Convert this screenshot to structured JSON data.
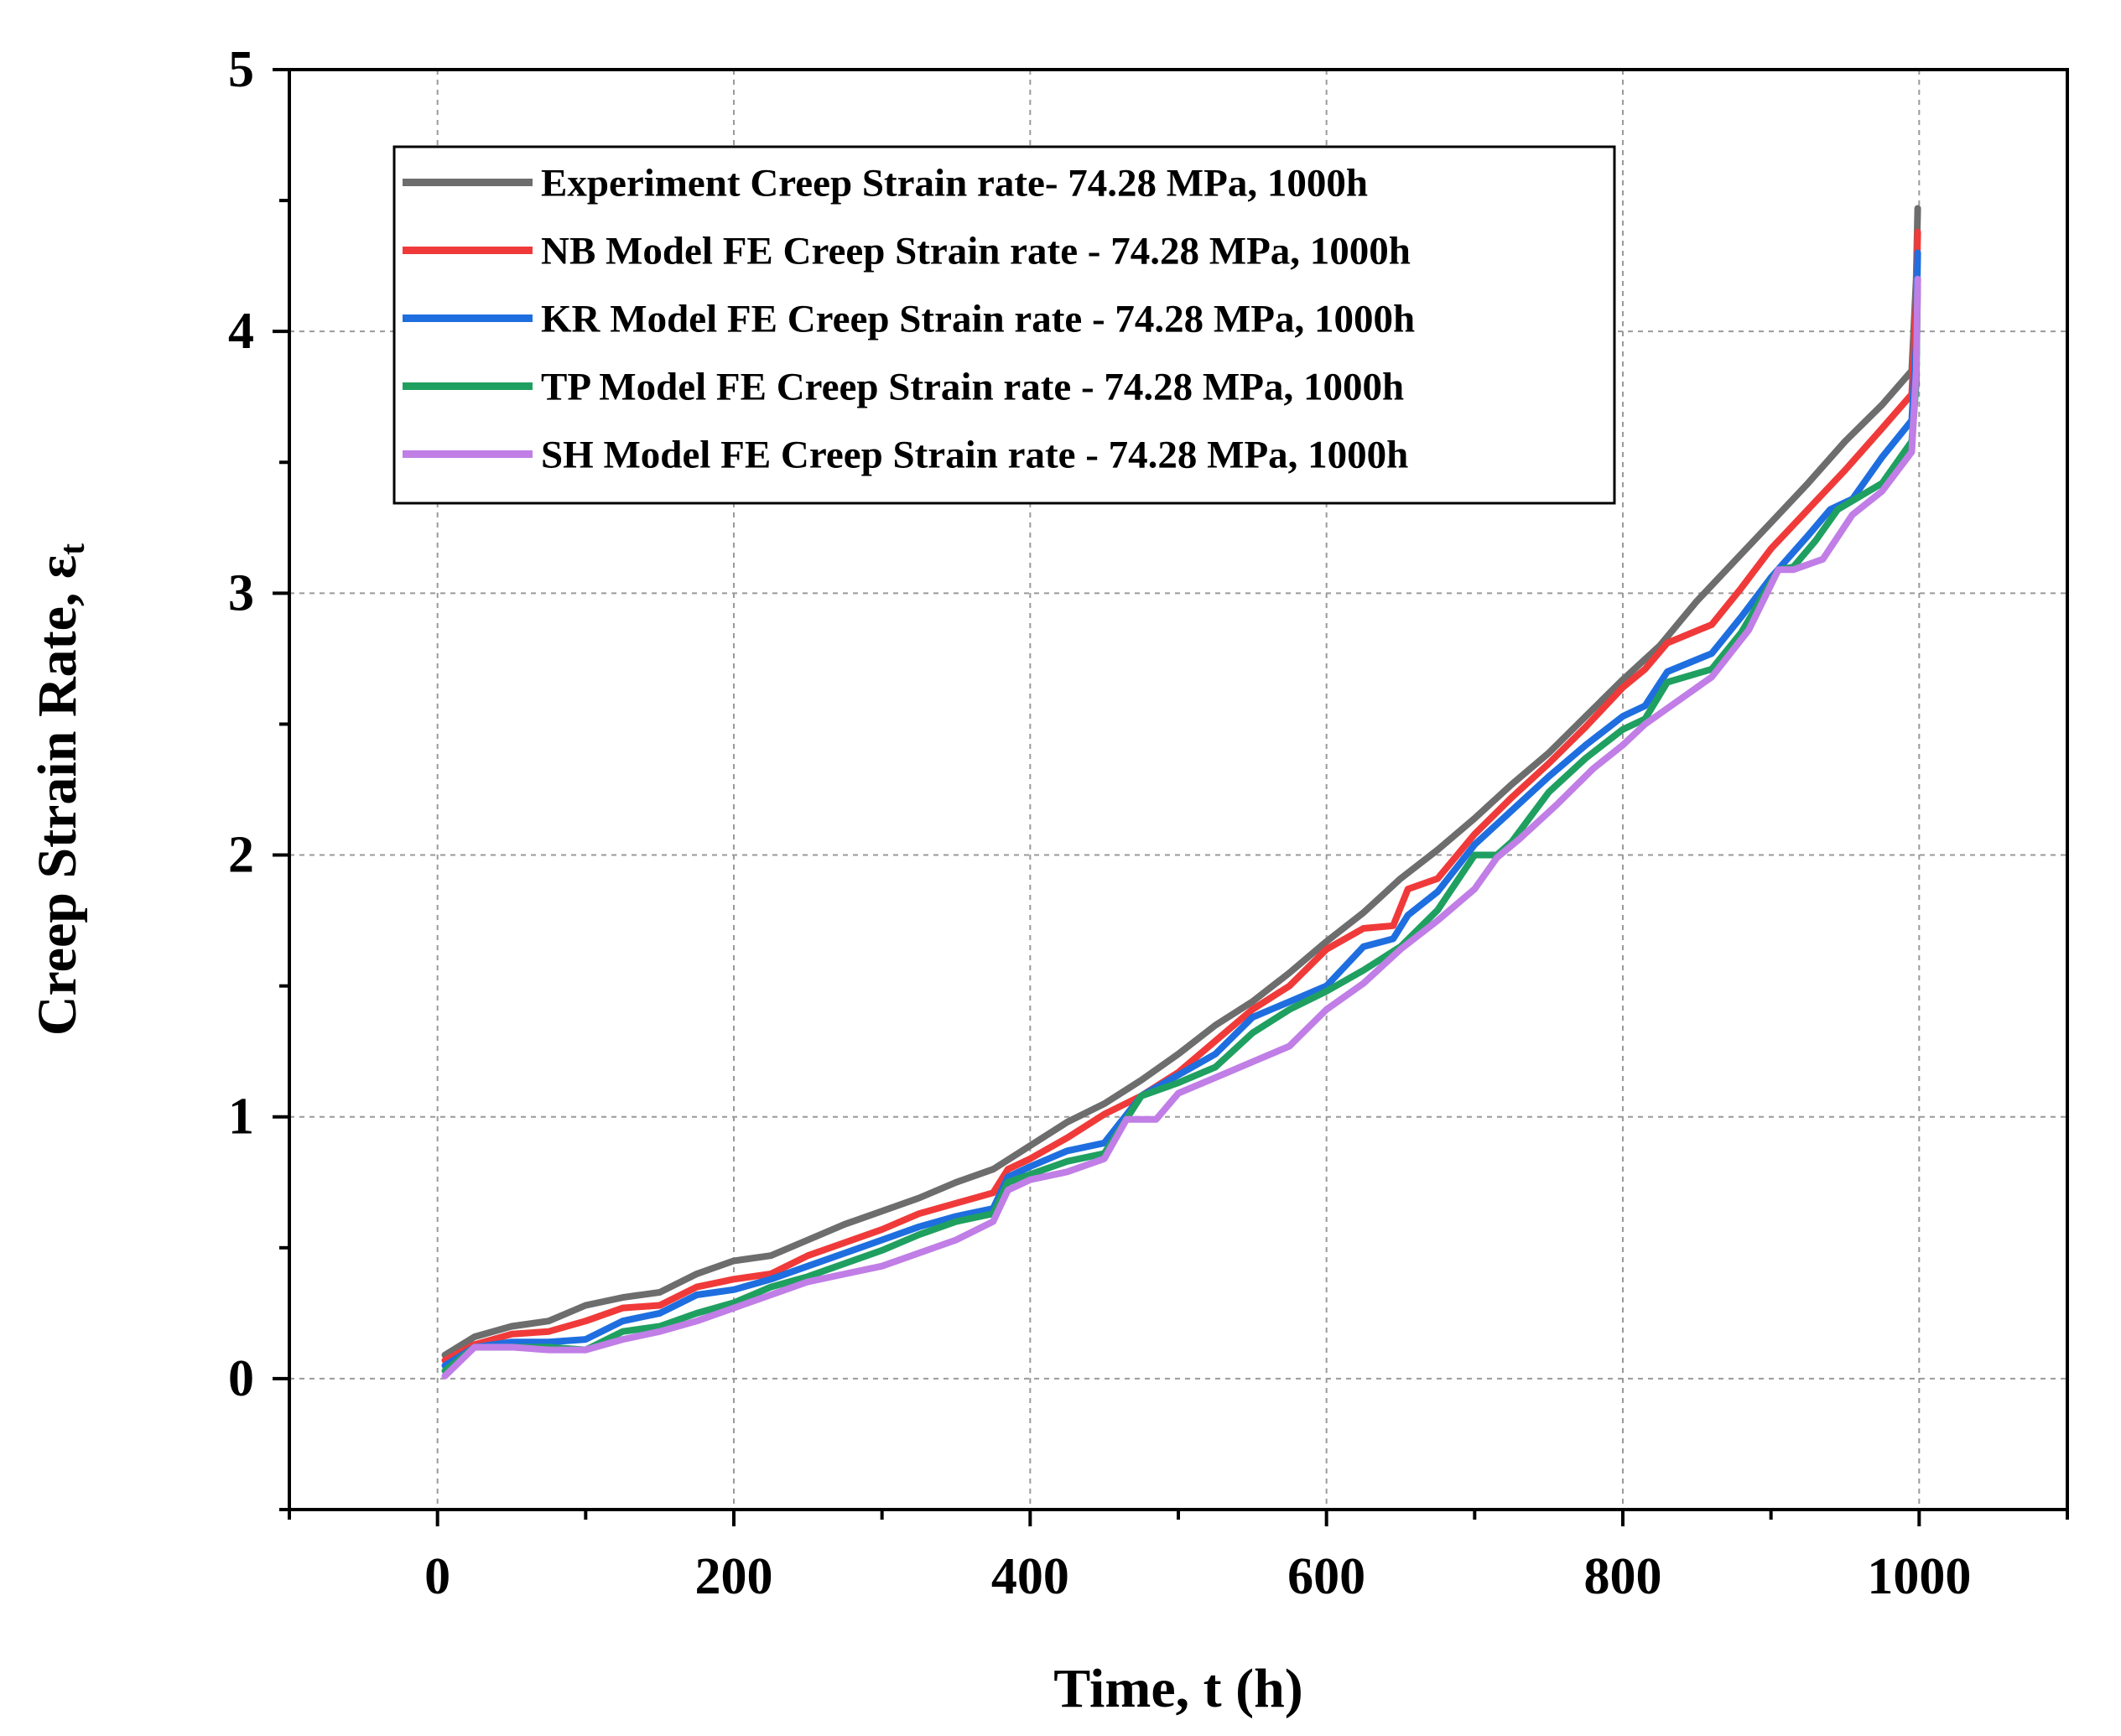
{
  "chart_data": {
    "type": "line",
    "title": "",
    "xlabel": "Time, t (h)",
    "ylabel": "Creep Strain Rate, ε",
    "ylabel_subscript": "t",
    "xlim": [
      -100,
      1100
    ],
    "ylim": [
      -0.5,
      5
    ],
    "xticks": [
      0,
      200,
      400,
      600,
      800,
      1000
    ],
    "yticks": [
      0,
      1,
      2,
      3,
      4,
      5
    ],
    "grid": true,
    "legend_position": "top-left",
    "series": [
      {
        "name": "Experiment Creep Strain rate- 74.28 MPa, 1000h",
        "color": "#6d6d6d",
        "x": [
          5,
          25,
          50,
          75,
          100,
          125,
          150,
          175,
          200,
          225,
          250,
          275,
          300,
          325,
          350,
          375,
          400,
          425,
          450,
          475,
          500,
          525,
          550,
          575,
          600,
          625,
          650,
          675,
          700,
          725,
          750,
          775,
          800,
          825,
          850,
          875,
          900,
          925,
          950,
          975,
          995,
          998,
          999
        ],
        "y": [
          0.09,
          0.16,
          0.2,
          0.22,
          0.28,
          0.31,
          0.33,
          0.4,
          0.45,
          0.47,
          0.53,
          0.59,
          0.64,
          0.69,
          0.75,
          0.8,
          0.89,
          0.98,
          1.05,
          1.14,
          1.24,
          1.35,
          1.44,
          1.55,
          1.67,
          1.78,
          1.91,
          2.02,
          2.14,
          2.27,
          2.39,
          2.53,
          2.67,
          2.8,
          2.97,
          3.12,
          3.27,
          3.42,
          3.58,
          3.72,
          3.85,
          4.2,
          4.47
        ]
      },
      {
        "name": "NB Model FE Creep Strain rate - 74.28 MPa, 1000h",
        "color": "#f03a3a",
        "x": [
          5,
          25,
          50,
          75,
          100,
          125,
          150,
          175,
          200,
          225,
          250,
          275,
          300,
          325,
          350,
          375,
          385,
          400,
          425,
          450,
          475,
          500,
          525,
          550,
          575,
          600,
          625,
          645,
          655,
          675,
          700,
          725,
          750,
          775,
          800,
          815,
          830,
          860,
          880,
          900,
          925,
          950,
          975,
          995,
          998,
          999
        ],
        "y": [
          0.07,
          0.13,
          0.17,
          0.18,
          0.22,
          0.27,
          0.28,
          0.35,
          0.38,
          0.4,
          0.47,
          0.52,
          0.57,
          0.63,
          0.67,
          0.71,
          0.8,
          0.84,
          0.92,
          1.01,
          1.08,
          1.17,
          1.29,
          1.41,
          1.5,
          1.64,
          1.72,
          1.73,
          1.87,
          1.91,
          2.08,
          2.22,
          2.35,
          2.49,
          2.64,
          2.71,
          2.81,
          2.88,
          3.02,
          3.17,
          3.32,
          3.47,
          3.63,
          3.76,
          4.1,
          4.38
        ]
      },
      {
        "name": "KR Model FE Creep Strain rate - 74.28 MPa, 1000h",
        "color": "#1e6ee0",
        "x": [
          5,
          25,
          50,
          75,
          100,
          125,
          150,
          175,
          200,
          225,
          250,
          275,
          300,
          325,
          350,
          375,
          385,
          400,
          425,
          450,
          475,
          500,
          525,
          550,
          575,
          600,
          625,
          645,
          655,
          675,
          700,
          725,
          750,
          775,
          800,
          815,
          830,
          860,
          880,
          900,
          925,
          940,
          955,
          975,
          995,
          998,
          999
        ],
        "y": [
          0.05,
          0.12,
          0.14,
          0.14,
          0.15,
          0.22,
          0.25,
          0.32,
          0.34,
          0.38,
          0.43,
          0.48,
          0.53,
          0.58,
          0.62,
          0.65,
          0.77,
          0.81,
          0.87,
          0.9,
          1.08,
          1.16,
          1.24,
          1.38,
          1.44,
          1.5,
          1.65,
          1.68,
          1.77,
          1.86,
          2.04,
          2.17,
          2.3,
          2.42,
          2.53,
          2.57,
          2.7,
          2.77,
          2.91,
          3.06,
          3.22,
          3.32,
          3.36,
          3.52,
          3.66,
          3.95,
          4.3
        ]
      },
      {
        "name": "TP Model FE Creep Strain rate - 74.28 MPa, 1000h",
        "color": "#1fa060",
        "x": [
          5,
          25,
          50,
          75,
          100,
          125,
          150,
          175,
          200,
          225,
          250,
          275,
          300,
          325,
          350,
          375,
          385,
          400,
          425,
          450,
          475,
          500,
          525,
          550,
          575,
          600,
          625,
          650,
          675,
          700,
          715,
          725,
          750,
          775,
          800,
          815,
          830,
          860,
          880,
          905,
          915,
          930,
          945,
          975,
          995,
          998,
          999
        ],
        "y": [
          0.03,
          0.12,
          0.12,
          0.12,
          0.11,
          0.18,
          0.2,
          0.25,
          0.29,
          0.35,
          0.39,
          0.44,
          0.49,
          0.55,
          0.6,
          0.63,
          0.75,
          0.78,
          0.83,
          0.86,
          1.08,
          1.13,
          1.19,
          1.32,
          1.41,
          1.48,
          1.56,
          1.65,
          1.79,
          2.0,
          2.0,
          2.05,
          2.24,
          2.37,
          2.48,
          2.52,
          2.66,
          2.71,
          2.85,
          3.09,
          3.1,
          3.2,
          3.32,
          3.42,
          3.58,
          3.8,
          4.2
        ]
      },
      {
        "name": "SH Model FE Creep Strain rate - 74.28 MPa, 1000h",
        "color": "#c07ee6",
        "x": [
          5,
          25,
          50,
          75,
          100,
          125,
          150,
          175,
          200,
          225,
          250,
          275,
          300,
          325,
          350,
          375,
          385,
          400,
          425,
          450,
          465,
          485,
          500,
          525,
          550,
          575,
          600,
          625,
          650,
          675,
          700,
          715,
          730,
          755,
          780,
          800,
          815,
          830,
          860,
          885,
          905,
          915,
          935,
          955,
          975,
          995,
          998,
          999
        ],
        "y": [
          0.01,
          0.12,
          0.12,
          0.11,
          0.11,
          0.15,
          0.18,
          0.22,
          0.27,
          0.32,
          0.37,
          0.4,
          0.43,
          0.48,
          0.53,
          0.6,
          0.72,
          0.76,
          0.79,
          0.84,
          0.99,
          0.99,
          1.09,
          1.15,
          1.21,
          1.27,
          1.41,
          1.51,
          1.64,
          1.75,
          1.87,
          1.99,
          2.06,
          2.19,
          2.33,
          2.42,
          2.5,
          2.56,
          2.68,
          2.86,
          3.09,
          3.09,
          3.13,
          3.3,
          3.39,
          3.54,
          3.85,
          4.2
        ]
      }
    ]
  }
}
